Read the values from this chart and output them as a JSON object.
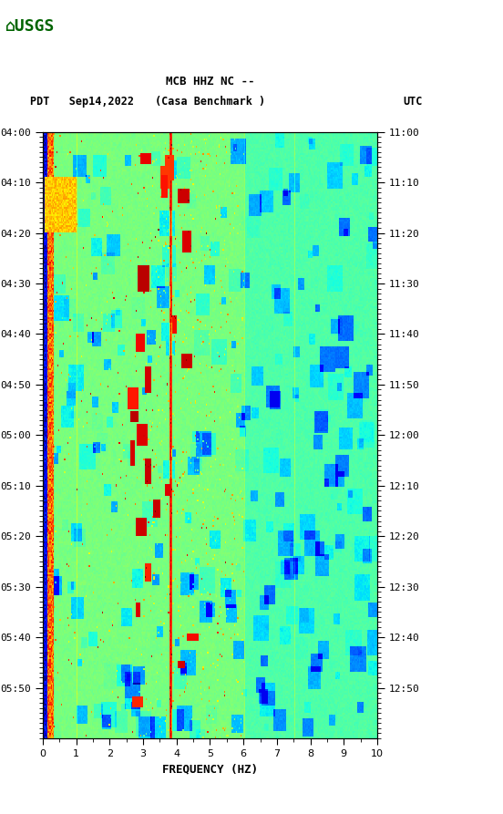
{
  "title_line1": "MCB HHZ NC --",
  "title_line2": "(Casa Benchmark )",
  "date_label": "PDT   Sep14,2022",
  "utc_label": "UTC",
  "xlabel": "FREQUENCY (HZ)",
  "freq_min": 0,
  "freq_max": 10,
  "ytick_labels_left": [
    "04:00",
    "04:10",
    "04:20",
    "04:30",
    "04:40",
    "04:50",
    "05:00",
    "05:10",
    "05:20",
    "05:30",
    "05:40",
    "05:50"
  ],
  "ytick_labels_right": [
    "11:00",
    "11:10",
    "11:20",
    "11:30",
    "11:40",
    "11:50",
    "12:00",
    "12:10",
    "12:20",
    "12:30",
    "12:40",
    "12:50"
  ],
  "bg_color": "#ffffff",
  "colormap": "jet",
  "fig_width": 5.52,
  "fig_height": 8.93,
  "dpi": 100,
  "logo_color": "#006400",
  "n_time": 330,
  "n_freq": 300
}
